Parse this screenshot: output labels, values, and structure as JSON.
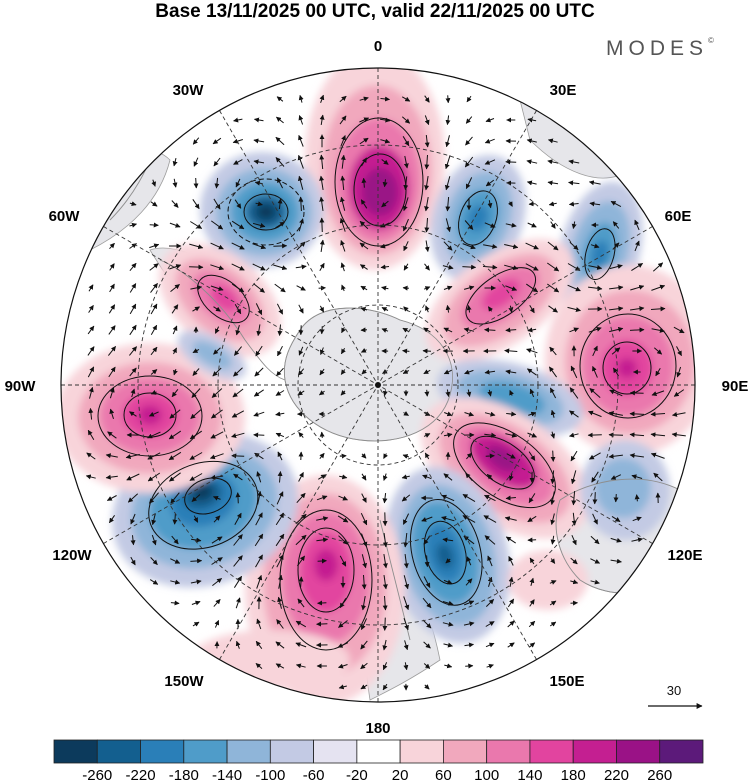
{
  "title": "Base 13/11/2025 00 UTC, valid 22/11/2025 00 UTC",
  "brand": "MODES",
  "brand_mark": "©",
  "longitude_labels": {
    "lon_0": "0",
    "lon_30E": "30E",
    "lon_60E": "60E",
    "lon_90E": "90E",
    "lon_120E": "120E",
    "lon_150E": "150E",
    "lon_180": "180",
    "lon_150W": "150W",
    "lon_120W": "120W",
    "lon_90W": "90W",
    "lon_60W": "60W",
    "lon_30W": "30W"
  },
  "vector_reference": {
    "value": "30"
  },
  "colorbar": {
    "labels": [
      "-260",
      "-220",
      "-180",
      "-140",
      "-100",
      "-60",
      "-20",
      "20",
      "60",
      "100",
      "140",
      "180",
      "220",
      "260"
    ],
    "colors": [
      "#0c3a5c",
      "#135f8f",
      "#2a7fb8",
      "#4f9cc9",
      "#8fb5d9",
      "#c3cae4",
      "#e5e3f1",
      "#ffffff",
      "#f8d4da",
      "#f1a8bd",
      "#ea78ad",
      "#e2449f",
      "#c41f91",
      "#9a1286",
      "#5c1a7a"
    ]
  },
  "colors": {
    "land": "#e8e8e8",
    "coast": "#999999",
    "neg_strong": "#1f5f8b",
    "pos_strong": "#8a1a88"
  }
}
